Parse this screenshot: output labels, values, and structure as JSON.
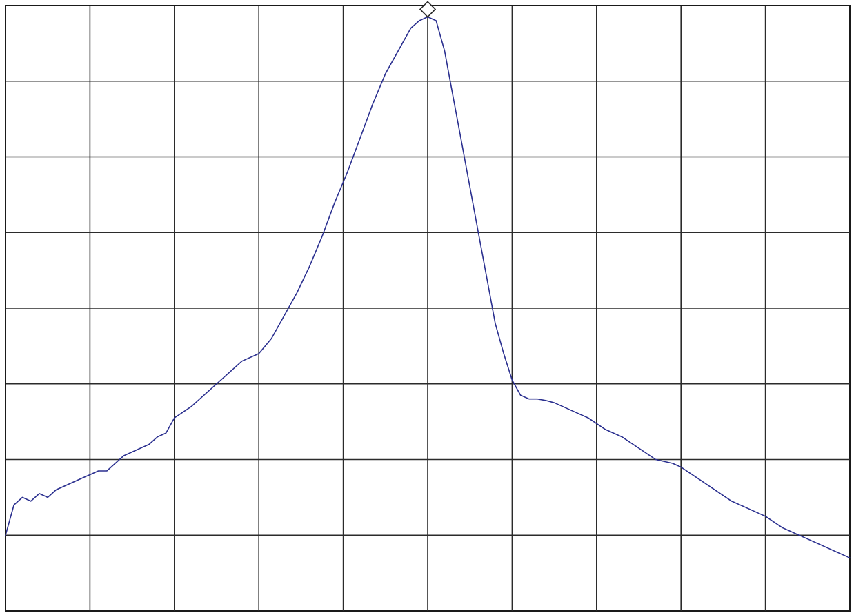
{
  "chart_data": {
    "type": "line",
    "title": "",
    "xlabel": "",
    "ylabel": "",
    "xlim": [
      0,
      10
    ],
    "ylim": [
      0,
      8
    ],
    "x_divisions": 10,
    "y_divisions": 8,
    "grid": true,
    "trace_color": "#2a2f8f",
    "marker": {
      "shape": "diamond",
      "x": 5.0,
      "y": 7.95
    },
    "series": [
      {
        "values_xy": [
          [
            0.0,
            1.0
          ],
          [
            0.1,
            1.4
          ],
          [
            0.2,
            1.5
          ],
          [
            0.3,
            1.45
          ],
          [
            0.4,
            1.55
          ],
          [
            0.5,
            1.5
          ],
          [
            0.6,
            1.6
          ],
          [
            0.7,
            1.65
          ],
          [
            0.8,
            1.7
          ],
          [
            0.9,
            1.75
          ],
          [
            1.0,
            1.8
          ],
          [
            1.1,
            1.85
          ],
          [
            1.2,
            1.85
          ],
          [
            1.3,
            1.95
          ],
          [
            1.4,
            2.05
          ],
          [
            1.5,
            2.1
          ],
          [
            1.6,
            2.15
          ],
          [
            1.7,
            2.2
          ],
          [
            1.8,
            2.3
          ],
          [
            1.9,
            2.35
          ],
          [
            2.0,
            2.55
          ],
          [
            2.2,
            2.7
          ],
          [
            2.4,
            2.9
          ],
          [
            2.6,
            3.1
          ],
          [
            2.8,
            3.3
          ],
          [
            3.0,
            3.4
          ],
          [
            3.15,
            3.6
          ],
          [
            3.3,
            3.9
          ],
          [
            3.45,
            4.2
          ],
          [
            3.6,
            4.55
          ],
          [
            3.75,
            4.95
          ],
          [
            3.9,
            5.4
          ],
          [
            4.05,
            5.8
          ],
          [
            4.2,
            6.25
          ],
          [
            4.35,
            6.7
          ],
          [
            4.5,
            7.1
          ],
          [
            4.65,
            7.4
          ],
          [
            4.8,
            7.7
          ],
          [
            4.9,
            7.8
          ],
          [
            5.0,
            7.85
          ],
          [
            5.1,
            7.8
          ],
          [
            5.2,
            7.4
          ],
          [
            5.3,
            6.8
          ],
          [
            5.4,
            6.2
          ],
          [
            5.5,
            5.6
          ],
          [
            5.6,
            5.0
          ],
          [
            5.7,
            4.4
          ],
          [
            5.8,
            3.8
          ],
          [
            5.9,
            3.4
          ],
          [
            6.0,
            3.05
          ],
          [
            6.1,
            2.85
          ],
          [
            6.2,
            2.8
          ],
          [
            6.3,
            2.8
          ],
          [
            6.4,
            2.78
          ],
          [
            6.5,
            2.75
          ],
          [
            6.7,
            2.65
          ],
          [
            6.9,
            2.55
          ],
          [
            7.1,
            2.4
          ],
          [
            7.3,
            2.3
          ],
          [
            7.5,
            2.15
          ],
          [
            7.7,
            2.0
          ],
          [
            7.9,
            1.95
          ],
          [
            8.0,
            1.9
          ],
          [
            8.2,
            1.75
          ],
          [
            8.4,
            1.6
          ],
          [
            8.6,
            1.45
          ],
          [
            8.8,
            1.35
          ],
          [
            9.0,
            1.25
          ],
          [
            9.2,
            1.1
          ],
          [
            9.4,
            1.0
          ],
          [
            9.6,
            0.9
          ],
          [
            9.8,
            0.8
          ],
          [
            10.0,
            0.7
          ]
        ]
      }
    ]
  }
}
